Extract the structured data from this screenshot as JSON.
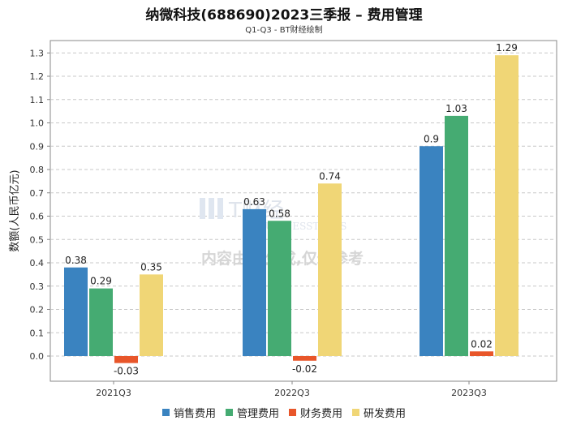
{
  "chart_data": {
    "type": "bar",
    "title": "纳微科技(688690)2023三季报 – 费用管理",
    "subtitle": "Q1-Q3 - BT财经绘制",
    "xlabel": "",
    "ylabel": "数额(人民币亿元)",
    "ylim": [
      -0.1,
      1.32
    ],
    "yticks": [
      "0.0",
      "0.1",
      "0.2",
      "0.3",
      "0.4",
      "0.5",
      "0.6",
      "0.7",
      "0.8",
      "0.9",
      "1.0",
      "1.1",
      "1.2",
      "1.3"
    ],
    "categories": [
      "2021Q3",
      "2022Q3",
      "2023Q3"
    ],
    "series": [
      {
        "name": "销售费用",
        "color": "#3a83c0",
        "values": [
          0.38,
          0.63,
          0.9
        ],
        "labels": [
          "0.38",
          "0.63",
          "0.9"
        ]
      },
      {
        "name": "管理费用",
        "color": "#45ab72",
        "values": [
          0.29,
          0.58,
          1.03
        ],
        "labels": [
          "0.29",
          "0.58",
          "1.03"
        ]
      },
      {
        "name": "财务费用",
        "color": "#e8562a",
        "values": [
          -0.03,
          -0.02,
          0.02
        ],
        "labels": [
          "-0.03",
          "-0.02",
          "0.02"
        ]
      },
      {
        "name": "研发费用",
        "color": "#f0d676",
        "values": [
          0.35,
          0.74,
          1.29
        ],
        "labels": [
          "0.35",
          "0.74",
          "1.29"
        ]
      }
    ],
    "grid": true,
    "legend": "bottom",
    "watermark": {
      "logo_text": "T财经",
      "logo_sub": "BUSINESSTIMES",
      "text": "内容由AI生成,仅供参考"
    }
  }
}
